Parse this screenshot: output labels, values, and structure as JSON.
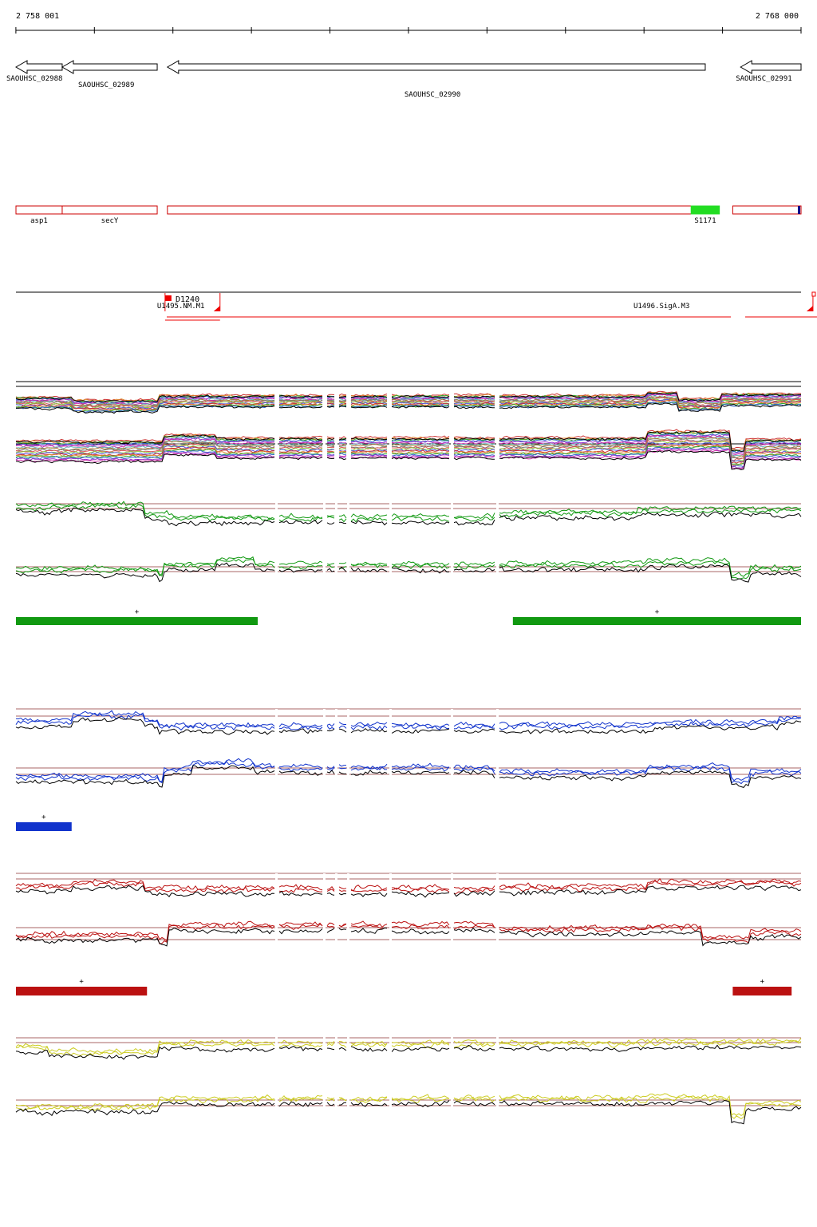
{
  "coordinates": {
    "start_label": "2 758 001",
    "end_label": "2 768 000",
    "start": 2758001,
    "end": 2768000
  },
  "genes": [
    {
      "id": "SAOUHSC_02988",
      "start": 2758001,
      "end": 2758590,
      "strand": "-"
    },
    {
      "id": "SAOUHSC_02989",
      "start": 2758590,
      "end": 2759800,
      "strand": "-"
    },
    {
      "id": "SAOUHSC_02990",
      "start": 2759930,
      "end": 2766780,
      "strand": "-"
    },
    {
      "id": "SAOUHSC_02991",
      "start": 2767230,
      "end": 2768000,
      "strand": "-"
    }
  ],
  "annotations": [
    {
      "label": "asp1",
      "start": 2758001,
      "end": 2758590,
      "fill": "none",
      "color": "#cc0000"
    },
    {
      "label": "secY",
      "start": 2758590,
      "end": 2759800,
      "fill": "none",
      "color": "#cc0000"
    },
    {
      "label": "",
      "start": 2759930,
      "end": 2766780,
      "fill": "none",
      "color": "#cc0000"
    },
    {
      "label": "S1171",
      "start": 2766600,
      "end": 2766960,
      "fill": "#22dd22",
      "color": "#22dd22"
    },
    {
      "label": "",
      "start": 2767130,
      "end": 2768000,
      "fill": "none",
      "color": "#cc0000"
    }
  ],
  "transcripts": [
    {
      "label": "U1495.NM.M1",
      "start": 2759900,
      "end": 2760600
    },
    {
      "label": "U1496.SigA.M3",
      "start": 2766780,
      "end": 2767000
    }
  ],
  "transcript_marker": {
    "label": "D1240"
  },
  "segments": {
    "green": [
      {
        "start": 2758001,
        "end": 2761080,
        "strand": "+"
      },
      {
        "start": 2764330,
        "end": 2768000,
        "strand": "+"
      }
    ],
    "blue": [
      {
        "start": 2758001,
        "end": 2758710,
        "strand": "+"
      }
    ],
    "red": [
      {
        "start": 2758001,
        "end": 2759670,
        "strand": "+"
      },
      {
        "start": 2767130,
        "end": 2767880,
        "strand": "+"
      }
    ]
  },
  "colors": {
    "green": "#119911",
    "blue": "#1133cc",
    "red": "#bb1111",
    "yellow": "#cccc22",
    "black": "#000000"
  }
}
